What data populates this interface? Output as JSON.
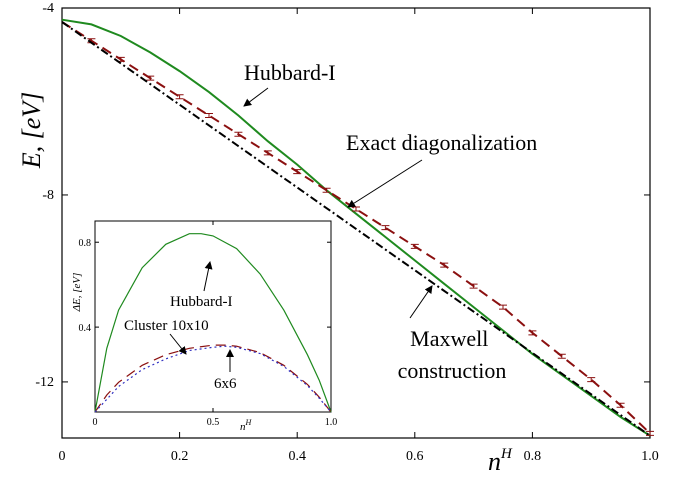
{
  "chart_data": [
    {
      "type": "line",
      "xlabel": "n",
      "xlabel_sup": "H",
      "ylabel": "E, [eV]",
      "xlim": [
        0,
        1.0
      ],
      "ylim": [
        -13.2,
        -4.0
      ],
      "xticks": [
        0,
        0.2,
        0.4,
        0.6,
        0.8,
        1.0
      ],
      "xtick_labels": [
        "0",
        "0.2",
        "0.4",
        "0.6",
        "0.8",
        "1.0"
      ],
      "yticks": [
        -12,
        -8,
        -4
      ],
      "ytick_labels": [
        "-12",
        "-8",
        "-4"
      ],
      "grid": false,
      "series": [
        {
          "name": "Hubbard-I",
          "style": "solid",
          "color": "#1f8a1f",
          "x": [
            0,
            0.05,
            0.1,
            0.15,
            0.2,
            0.25,
            0.3,
            0.35,
            0.4,
            0.45,
            0.5,
            0.55,
            0.6,
            0.65,
            0.7,
            0.75,
            0.8,
            0.85,
            0.9,
            0.95,
            1.0
          ],
          "y": [
            -4.25,
            -4.35,
            -4.6,
            -4.95,
            -5.35,
            -5.8,
            -6.3,
            -6.85,
            -7.35,
            -7.9,
            -8.4,
            -8.9,
            -9.4,
            -9.9,
            -10.4,
            -10.9,
            -11.4,
            -11.85,
            -12.3,
            -12.75,
            -13.15
          ]
        },
        {
          "name": "Exact diagonalization",
          "style": "dashed",
          "color": "#8b1010",
          "x": [
            0,
            0.05,
            0.1,
            0.15,
            0.2,
            0.25,
            0.3,
            0.35,
            0.4,
            0.45,
            0.5,
            0.55,
            0.6,
            0.65,
            0.7,
            0.75,
            0.8,
            0.85,
            0.9,
            0.95,
            1.0
          ],
          "y": [
            -4.3,
            -4.7,
            -5.1,
            -5.5,
            -5.9,
            -6.3,
            -6.7,
            -7.1,
            -7.5,
            -7.9,
            -8.3,
            -8.7,
            -9.1,
            -9.5,
            -9.95,
            -10.4,
            -10.95,
            -11.45,
            -11.95,
            -12.5,
            -13.1
          ]
        },
        {
          "name": "Maxwell construction",
          "style": "dashdot",
          "color": "#000000",
          "x": [
            0,
            1.0
          ],
          "y": [
            -4.3,
            -13.15
          ]
        }
      ],
      "annotations": [
        "Hubbard-I",
        "Exact diagonalization",
        "Maxwell construction"
      ]
    },
    {
      "type": "line",
      "inset": true,
      "xlabel": "n",
      "xlabel_sup": "H",
      "ylabel": "ΔE, [eV]",
      "xlim": [
        0,
        1.0
      ],
      "ylim": [
        0,
        0.9
      ],
      "xticks": [
        0,
        0.5,
        1.0
      ],
      "xtick_labels": [
        "0",
        "0.5",
        "1.0"
      ],
      "yticks": [
        0.4,
        0.8
      ],
      "ytick_labels": [
        "0.4",
        "0.8"
      ],
      "series": [
        {
          "name": "Hubbard-I",
          "style": "solid",
          "color": "#1f8a1f",
          "x": [
            0,
            0.05,
            0.1,
            0.2,
            0.3,
            0.4,
            0.45,
            0.5,
            0.6,
            0.7,
            0.8,
            0.9,
            0.95,
            1.0
          ],
          "y": [
            0,
            0.3,
            0.48,
            0.68,
            0.79,
            0.84,
            0.84,
            0.83,
            0.77,
            0.65,
            0.48,
            0.27,
            0.15,
            0
          ]
        },
        {
          "name": "Cluster 10x10",
          "style": "dashed",
          "color": "#8b1010",
          "x": [
            0,
            0.05,
            0.1,
            0.2,
            0.3,
            0.4,
            0.5,
            0.55,
            0.6,
            0.7,
            0.8,
            0.9,
            0.95,
            1.0
          ],
          "y": [
            0,
            0.08,
            0.14,
            0.22,
            0.27,
            0.3,
            0.315,
            0.315,
            0.31,
            0.28,
            0.22,
            0.13,
            0.07,
            0
          ]
        },
        {
          "name": "6x6",
          "style": "dotted",
          "color": "#3030c0",
          "x": [
            0,
            0.05,
            0.1,
            0.2,
            0.3,
            0.4,
            0.5,
            0.55,
            0.6,
            0.7,
            0.8,
            0.9,
            0.95,
            1.0
          ],
          "y": [
            0,
            0.06,
            0.12,
            0.2,
            0.25,
            0.29,
            0.305,
            0.31,
            0.305,
            0.275,
            0.215,
            0.125,
            0.065,
            0
          ]
        }
      ],
      "annotations": [
        "Hubbard-I",
        "Cluster 10x10",
        "6x6"
      ]
    }
  ]
}
